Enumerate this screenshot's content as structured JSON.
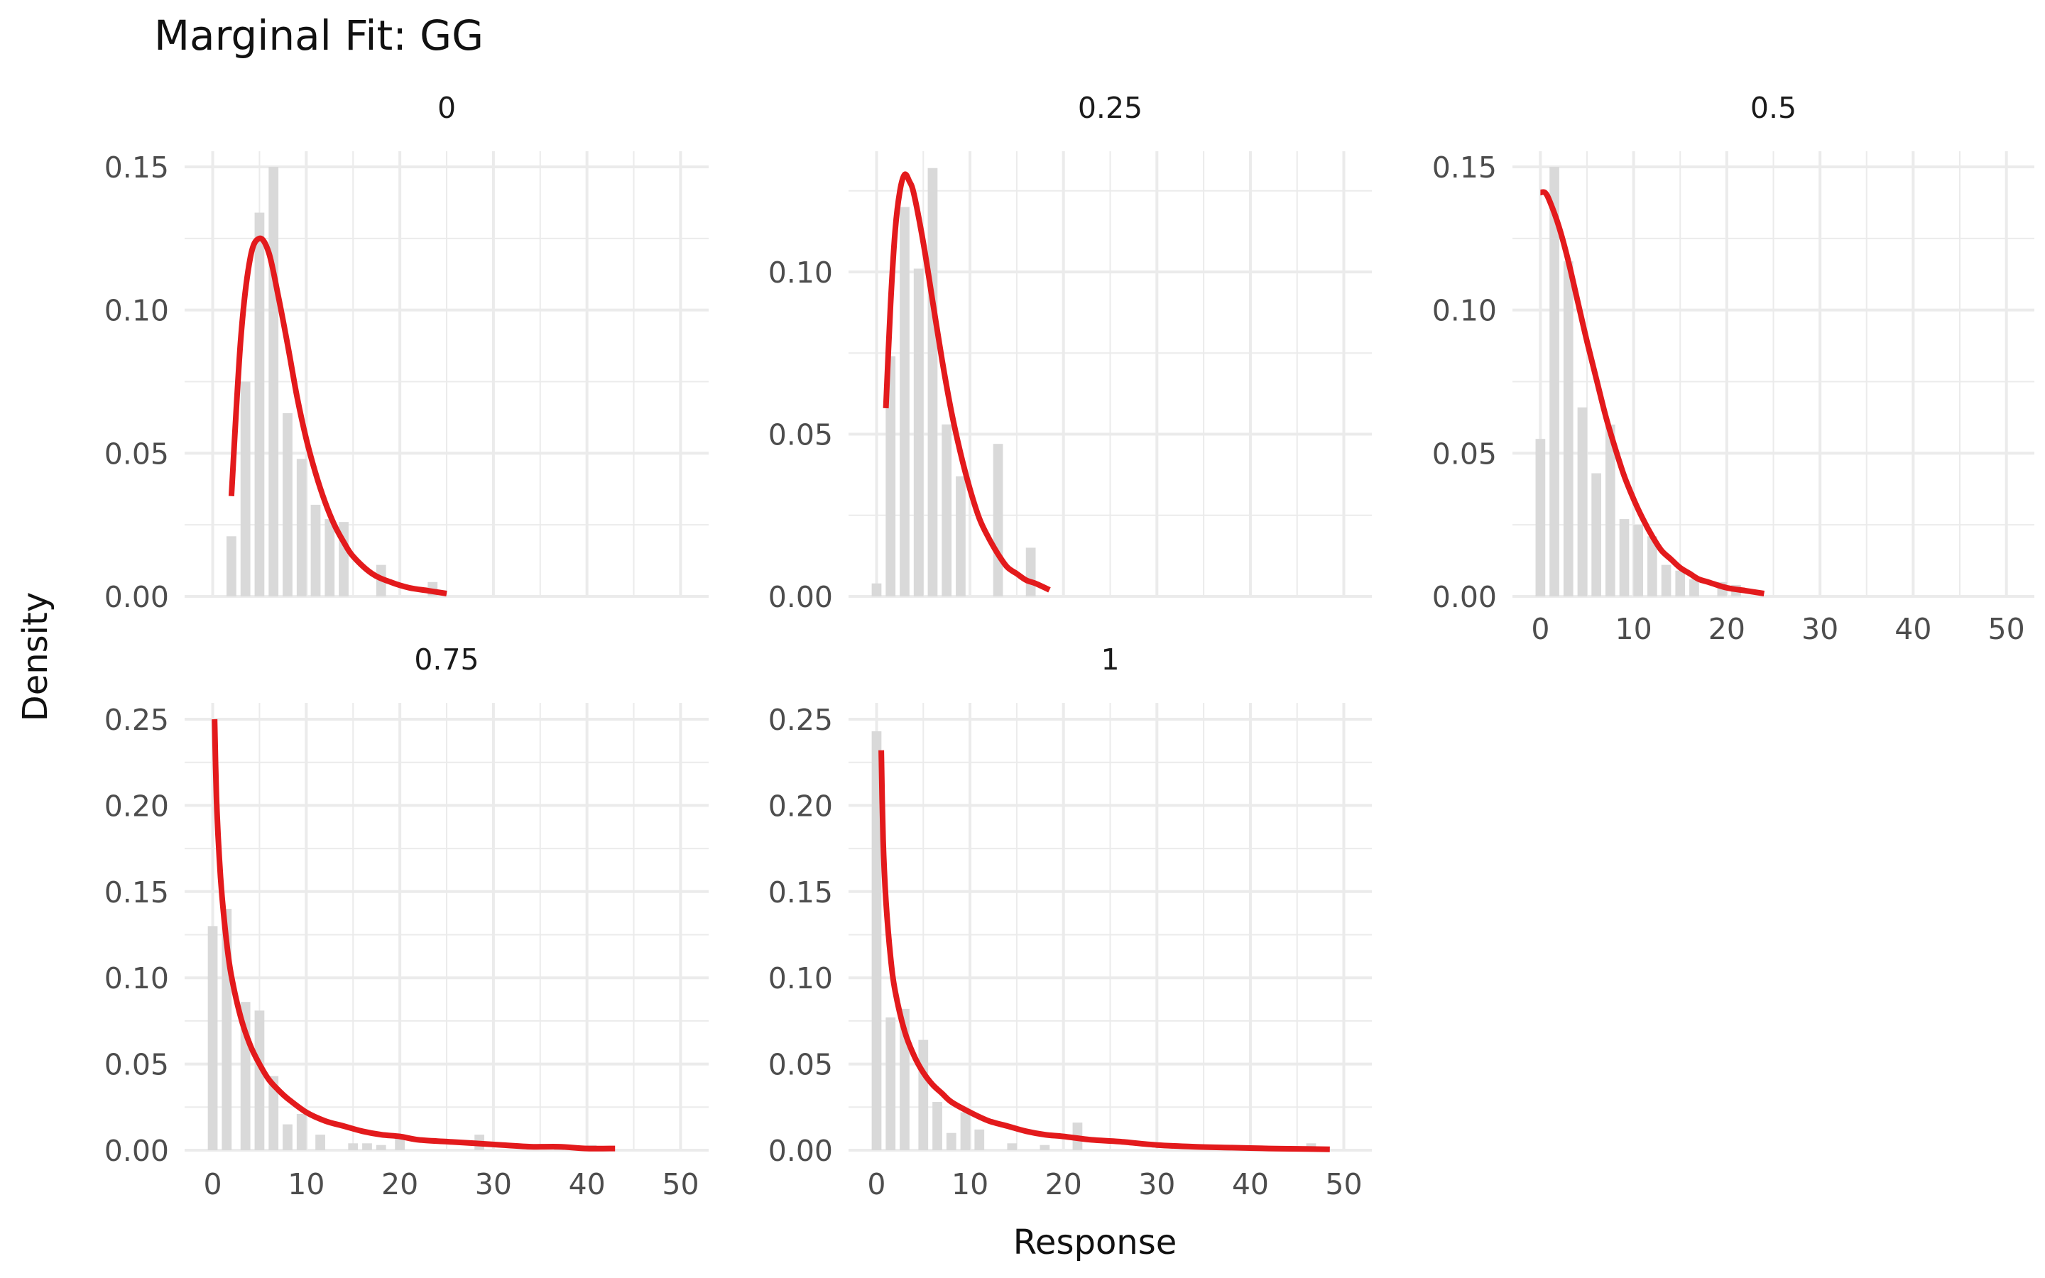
{
  "title": "Marginal Fit: GG",
  "xlabel": "Response",
  "ylabel": "Density",
  "colors": {
    "bar": "#d9d9d9",
    "curve": "#e31a1c",
    "grid": "#ebebeb",
    "text": "#4d4d4d"
  },
  "chart_data": [
    {
      "type": "bar",
      "panel_label": "0",
      "xlim": [
        -3,
        53
      ],
      "ylim": [
        0,
        0.15
      ],
      "x_ticks": [
        0,
        10,
        20,
        30,
        40,
        50
      ],
      "y_ticks": [
        0,
        0.05,
        0.1,
        0.15
      ],
      "y_tick_labels": [
        "0.00",
        "0.05",
        "0.10",
        "0.15"
      ],
      "bar_width": 1.5,
      "bars": [
        {
          "x": 2,
          "y": 0.021
        },
        {
          "x": 3.5,
          "y": 0.075
        },
        {
          "x": 5,
          "y": 0.134
        },
        {
          "x": 6.5,
          "y": 0.15
        },
        {
          "x": 8,
          "y": 0.064
        },
        {
          "x": 9.5,
          "y": 0.048
        },
        {
          "x": 11,
          "y": 0.032
        },
        {
          "x": 12.5,
          "y": 0.027
        },
        {
          "x": 14,
          "y": 0.026
        },
        {
          "x": 18,
          "y": 0.011
        },
        {
          "x": 23.5,
          "y": 0.005
        }
      ],
      "fit_curve": {
        "x": [
          2,
          3,
          4,
          5,
          6,
          7,
          8,
          9,
          10,
          11,
          12,
          13,
          14,
          15,
          17,
          19,
          21,
          23,
          25
        ],
        "y": [
          0.035,
          0.09,
          0.118,
          0.125,
          0.12,
          0.105,
          0.088,
          0.07,
          0.055,
          0.043,
          0.033,
          0.025,
          0.019,
          0.014,
          0.008,
          0.005,
          0.003,
          0.002,
          0.001
        ]
      }
    },
    {
      "type": "bar",
      "panel_label": "0.25",
      "xlim": [
        -3,
        53
      ],
      "ylim": [
        0,
        0.135
      ],
      "x_ticks": [
        0,
        10,
        20,
        30,
        40,
        50
      ],
      "y_ticks": [
        0,
        0.05,
        0.1
      ],
      "y_tick_labels": [
        "0.00",
        "0.05",
        "0.10"
      ],
      "bar_width": 1.5,
      "bars": [
        {
          "x": 0,
          "y": 0.004
        },
        {
          "x": 1.5,
          "y": 0.074
        },
        {
          "x": 3,
          "y": 0.12
        },
        {
          "x": 4.5,
          "y": 0.101
        },
        {
          "x": 6,
          "y": 0.132
        },
        {
          "x": 7.5,
          "y": 0.053
        },
        {
          "x": 9,
          "y": 0.037
        },
        {
          "x": 13,
          "y": 0.047
        },
        {
          "x": 16.5,
          "y": 0.015
        }
      ],
      "fit_curve": {
        "x": [
          1,
          1.5,
          2,
          2.5,
          3,
          3.5,
          4,
          5,
          6,
          7,
          8,
          9,
          10,
          11,
          12,
          13,
          14,
          15,
          16,
          17,
          18.5
        ],
        "y": [
          0.058,
          0.09,
          0.113,
          0.125,
          0.13,
          0.128,
          0.124,
          0.109,
          0.091,
          0.073,
          0.057,
          0.044,
          0.033,
          0.024,
          0.018,
          0.013,
          0.009,
          0.007,
          0.005,
          0.004,
          0.002
        ]
      }
    },
    {
      "type": "bar",
      "panel_label": "0.5",
      "xlim": [
        -3,
        53
      ],
      "ylim": [
        0,
        0.15
      ],
      "x_ticks": [
        0,
        10,
        20,
        30,
        40,
        50
      ],
      "x_tick_labels": [
        "0",
        "10",
        "20",
        "30",
        "40",
        "50"
      ],
      "y_ticks": [
        0,
        0.05,
        0.1,
        0.15
      ],
      "y_tick_labels": [
        "0.00",
        "0.05",
        "0.10",
        "0.15"
      ],
      "bar_width": 1.5,
      "bars": [
        {
          "x": 0,
          "y": 0.055
        },
        {
          "x": 1.5,
          "y": 0.15
        },
        {
          "x": 3,
          "y": 0.117
        },
        {
          "x": 4.5,
          "y": 0.066
        },
        {
          "x": 6,
          "y": 0.043
        },
        {
          "x": 7.5,
          "y": 0.06
        },
        {
          "x": 9,
          "y": 0.027
        },
        {
          "x": 10.5,
          "y": 0.025
        },
        {
          "x": 12,
          "y": 0.021
        },
        {
          "x": 13.5,
          "y": 0.011
        },
        {
          "x": 15,
          "y": 0.009
        },
        {
          "x": 16.5,
          "y": 0.006
        },
        {
          "x": 19.5,
          "y": 0.005
        },
        {
          "x": 21,
          "y": 0.004
        }
      ],
      "fit_curve": {
        "x": [
          0,
          0.5,
          1,
          2,
          3,
          4,
          5,
          6,
          7,
          8,
          9,
          10,
          11,
          12,
          13,
          14,
          15,
          16,
          17,
          18,
          20,
          22,
          24
        ],
        "y": [
          0.141,
          0.141,
          0.138,
          0.129,
          0.117,
          0.103,
          0.089,
          0.076,
          0.063,
          0.052,
          0.042,
          0.034,
          0.027,
          0.021,
          0.016,
          0.013,
          0.01,
          0.008,
          0.006,
          0.005,
          0.003,
          0.002,
          0.001
        ]
      }
    },
    {
      "type": "bar",
      "panel_label": "0.75",
      "xlim": [
        -3,
        53
      ],
      "ylim": [
        0,
        0.25
      ],
      "x_ticks": [
        0,
        10,
        20,
        30,
        40,
        50
      ],
      "x_tick_labels": [
        "0",
        "10",
        "20",
        "30",
        "40",
        "50"
      ],
      "y_ticks": [
        0,
        0.05,
        0.1,
        0.15,
        0.2,
        0.25
      ],
      "y_tick_labels": [
        "0.00",
        "0.05",
        "0.10",
        "0.15",
        "0.20",
        "0.25"
      ],
      "bar_width": 1.5,
      "bars": [
        {
          "x": 0,
          "y": 0.13
        },
        {
          "x": 1.5,
          "y": 0.14
        },
        {
          "x": 3.5,
          "y": 0.086
        },
        {
          "x": 5,
          "y": 0.081
        },
        {
          "x": 6.5,
          "y": 0.043
        },
        {
          "x": 8,
          "y": 0.015
        },
        {
          "x": 9.5,
          "y": 0.021
        },
        {
          "x": 11.5,
          "y": 0.009
        },
        {
          "x": 15,
          "y": 0.004
        },
        {
          "x": 16.5,
          "y": 0.004
        },
        {
          "x": 18,
          "y": 0.003
        },
        {
          "x": 20,
          "y": 0.009
        },
        {
          "x": 28.5,
          "y": 0.009
        },
        {
          "x": 37,
          "y": 0.003
        },
        {
          "x": 40.5,
          "y": 0.003
        }
      ],
      "fit_curve": {
        "x": [
          0.2,
          0.4,
          0.7,
          1,
          1.5,
          2,
          3,
          4,
          5,
          6,
          7,
          8,
          10,
          12,
          14,
          16,
          18,
          20,
          22,
          25,
          28,
          31,
          34,
          37,
          40,
          43
        ],
        "y": [
          0.25,
          0.205,
          0.17,
          0.147,
          0.12,
          0.101,
          0.077,
          0.061,
          0.05,
          0.041,
          0.035,
          0.03,
          0.022,
          0.017,
          0.014,
          0.011,
          0.009,
          0.008,
          0.006,
          0.005,
          0.004,
          0.003,
          0.002,
          0.002,
          0.001,
          0.001
        ]
      }
    },
    {
      "type": "bar",
      "panel_label": "1",
      "xlim": [
        -3,
        53
      ],
      "ylim": [
        0,
        0.25
      ],
      "x_ticks": [
        0,
        10,
        20,
        30,
        40,
        50
      ],
      "x_tick_labels": [
        "0",
        "10",
        "20",
        "30",
        "40",
        "50"
      ],
      "y_ticks": [
        0,
        0.05,
        0.1,
        0.15,
        0.2,
        0.25
      ],
      "y_tick_labels": [
        "0.00",
        "0.05",
        "0.10",
        "0.15",
        "0.20",
        "0.25"
      ],
      "bar_width": 1.5,
      "bars": [
        {
          "x": 0,
          "y": 0.243
        },
        {
          "x": 1.5,
          "y": 0.077
        },
        {
          "x": 3,
          "y": 0.082
        },
        {
          "x": 5,
          "y": 0.064
        },
        {
          "x": 6.5,
          "y": 0.028
        },
        {
          "x": 8,
          "y": 0.01
        },
        {
          "x": 9.5,
          "y": 0.022
        },
        {
          "x": 11,
          "y": 0.012
        },
        {
          "x": 14.5,
          "y": 0.004
        },
        {
          "x": 18,
          "y": 0.003
        },
        {
          "x": 21.5,
          "y": 0.016
        },
        {
          "x": 46.5,
          "y": 0.004
        }
      ],
      "fit_curve": {
        "x": [
          0.5,
          0.7,
          1,
          1.5,
          2,
          3,
          4,
          5,
          6,
          7,
          8,
          10,
          12,
          14,
          16,
          18,
          20,
          23,
          26,
          30,
          34,
          38,
          42,
          46,
          48.5
        ],
        "y": [
          0.232,
          0.18,
          0.145,
          0.112,
          0.092,
          0.069,
          0.055,
          0.045,
          0.038,
          0.033,
          0.028,
          0.022,
          0.017,
          0.014,
          0.011,
          0.009,
          0.008,
          0.006,
          0.005,
          0.003,
          0.002,
          0.0015,
          0.001,
          0.0007,
          0.0005
        ]
      }
    }
  ]
}
